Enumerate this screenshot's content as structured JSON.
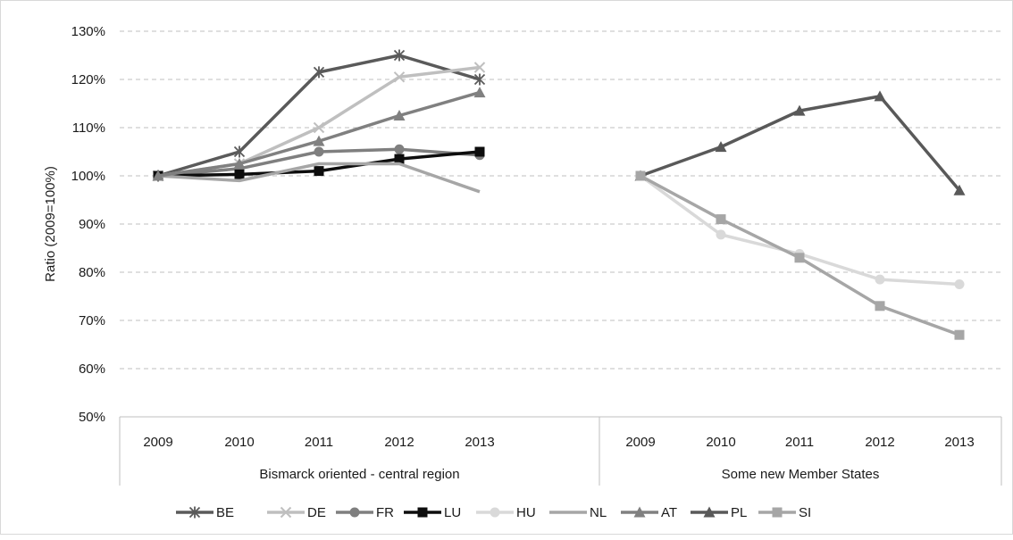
{
  "chart_data": {
    "type": "line",
    "ylabel": "Ratio (2009=100%)",
    "ylim": [
      50,
      130
    ],
    "yticks": [
      "50%",
      "60%",
      "70%",
      "80%",
      "90%",
      "100%",
      "110%",
      "120%",
      "130%"
    ],
    "grid": true,
    "legend_position": "bottom",
    "groups": [
      {
        "label": "Bismarck oriented - central region",
        "categories": [
          "2009",
          "2010",
          "2011",
          "2012",
          "2013"
        ]
      },
      {
        "label": "Some new Member States",
        "categories": [
          "2009",
          "2010",
          "2011",
          "2012",
          "2013"
        ]
      }
    ],
    "series": [
      {
        "name": "BE",
        "group": 0,
        "marker": "asterisk",
        "color": "#5a5a5a",
        "values": [
          100,
          105,
          121.5,
          125,
          120
        ]
      },
      {
        "name": "DE",
        "group": 0,
        "marker": "x",
        "color": "#bfbfbf",
        "values": [
          100,
          102.5,
          110,
          120.5,
          122.5
        ]
      },
      {
        "name": "FR",
        "group": 0,
        "marker": "circle",
        "color": "#7f7f7f",
        "values": [
          100,
          101.5,
          105,
          105.5,
          104.3
        ]
      },
      {
        "name": "LU",
        "group": 0,
        "marker": "square",
        "color": "#0d0d0d",
        "values": [
          100,
          100.3,
          101,
          103.5,
          105
        ]
      },
      {
        "name": "HU",
        "group": 1,
        "marker": "circle",
        "color": "#d9d9d9",
        "values": [
          100,
          87.8,
          83.8,
          78.5,
          77.5
        ]
      },
      {
        "name": "NL",
        "group": 0,
        "marker": "none",
        "color": "#a6a6a6",
        "values": [
          100,
          99,
          102.5,
          102.5,
          96.7
        ]
      },
      {
        "name": "AT",
        "group": 0,
        "marker": "triangle",
        "color": "#808080",
        "values": [
          100,
          102.5,
          107.2,
          112.5,
          117.3
        ]
      },
      {
        "name": "PL",
        "group": 1,
        "marker": "triangle",
        "color": "#595959",
        "values": [
          100,
          106,
          113.5,
          116.5,
          97
        ]
      },
      {
        "name": "SI",
        "group": 1,
        "marker": "square",
        "color": "#a6a6a6",
        "values": [
          100,
          91,
          83,
          73,
          67
        ]
      }
    ]
  }
}
